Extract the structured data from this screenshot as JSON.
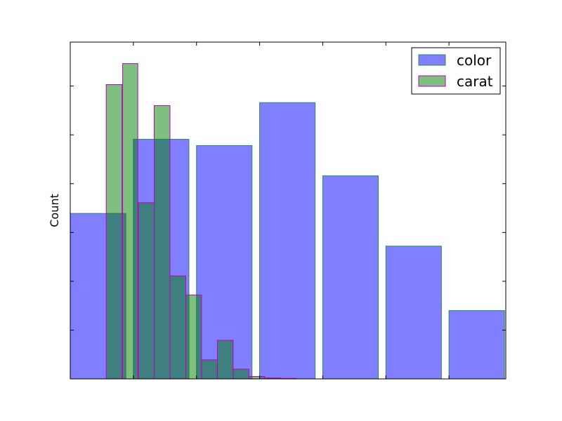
{
  "chart_data": {
    "type": "bar",
    "title": "",
    "xlabel": "",
    "ylabel": "Count",
    "xlim": [
      0,
      6.9
    ],
    "ylim": [
      0,
      6.9
    ],
    "x_tick_positions": [
      0,
      1,
      2,
      3,
      4,
      5,
      6
    ],
    "y_tick_positions": [
      1,
      2,
      3,
      4,
      5,
      6
    ],
    "legend": {
      "placement": "top-right"
    },
    "series": [
      {
        "name": "color",
        "color": "#0000ff",
        "edge_color": "#2e8b57",
        "alpha": 0.5,
        "bars": [
          {
            "x0": 0.0,
            "x1": 0.88,
            "value": 3.39
          },
          {
            "x0": 1.0,
            "x1": 1.88,
            "value": 4.91
          },
          {
            "x0": 2.0,
            "x1": 2.88,
            "value": 4.78
          },
          {
            "x0": 3.0,
            "x1": 3.88,
            "value": 5.66
          },
          {
            "x0": 4.0,
            "x1": 4.88,
            "value": 4.16
          },
          {
            "x0": 5.0,
            "x1": 5.88,
            "value": 2.72
          },
          {
            "x0": 6.0,
            "x1": 6.88,
            "value": 1.4
          }
        ]
      },
      {
        "name": "carat",
        "color": "#008000",
        "edge_color": "#bf00bf",
        "alpha": 0.5,
        "bars": [
          {
            "x0": 0.57,
            "x1": 0.82,
            "value": 6.03
          },
          {
            "x0": 0.83,
            "x1": 1.07,
            "value": 6.46
          },
          {
            "x0": 1.08,
            "x1": 1.33,
            "value": 3.61
          },
          {
            "x0": 1.33,
            "x1": 1.58,
            "value": 5.6
          },
          {
            "x0": 1.58,
            "x1": 1.83,
            "value": 2.11
          },
          {
            "x0": 1.83,
            "x1": 2.08,
            "value": 1.72
          },
          {
            "x0": 2.08,
            "x1": 2.33,
            "value": 0.39
          },
          {
            "x0": 2.33,
            "x1": 2.58,
            "value": 0.79
          },
          {
            "x0": 2.58,
            "x1": 2.83,
            "value": 0.2
          },
          {
            "x0": 2.83,
            "x1": 3.08,
            "value": 0.05
          },
          {
            "x0": 3.08,
            "x1": 3.33,
            "value": 0.02
          },
          {
            "x0": 3.33,
            "x1": 3.58,
            "value": 0.01
          }
        ]
      }
    ]
  }
}
